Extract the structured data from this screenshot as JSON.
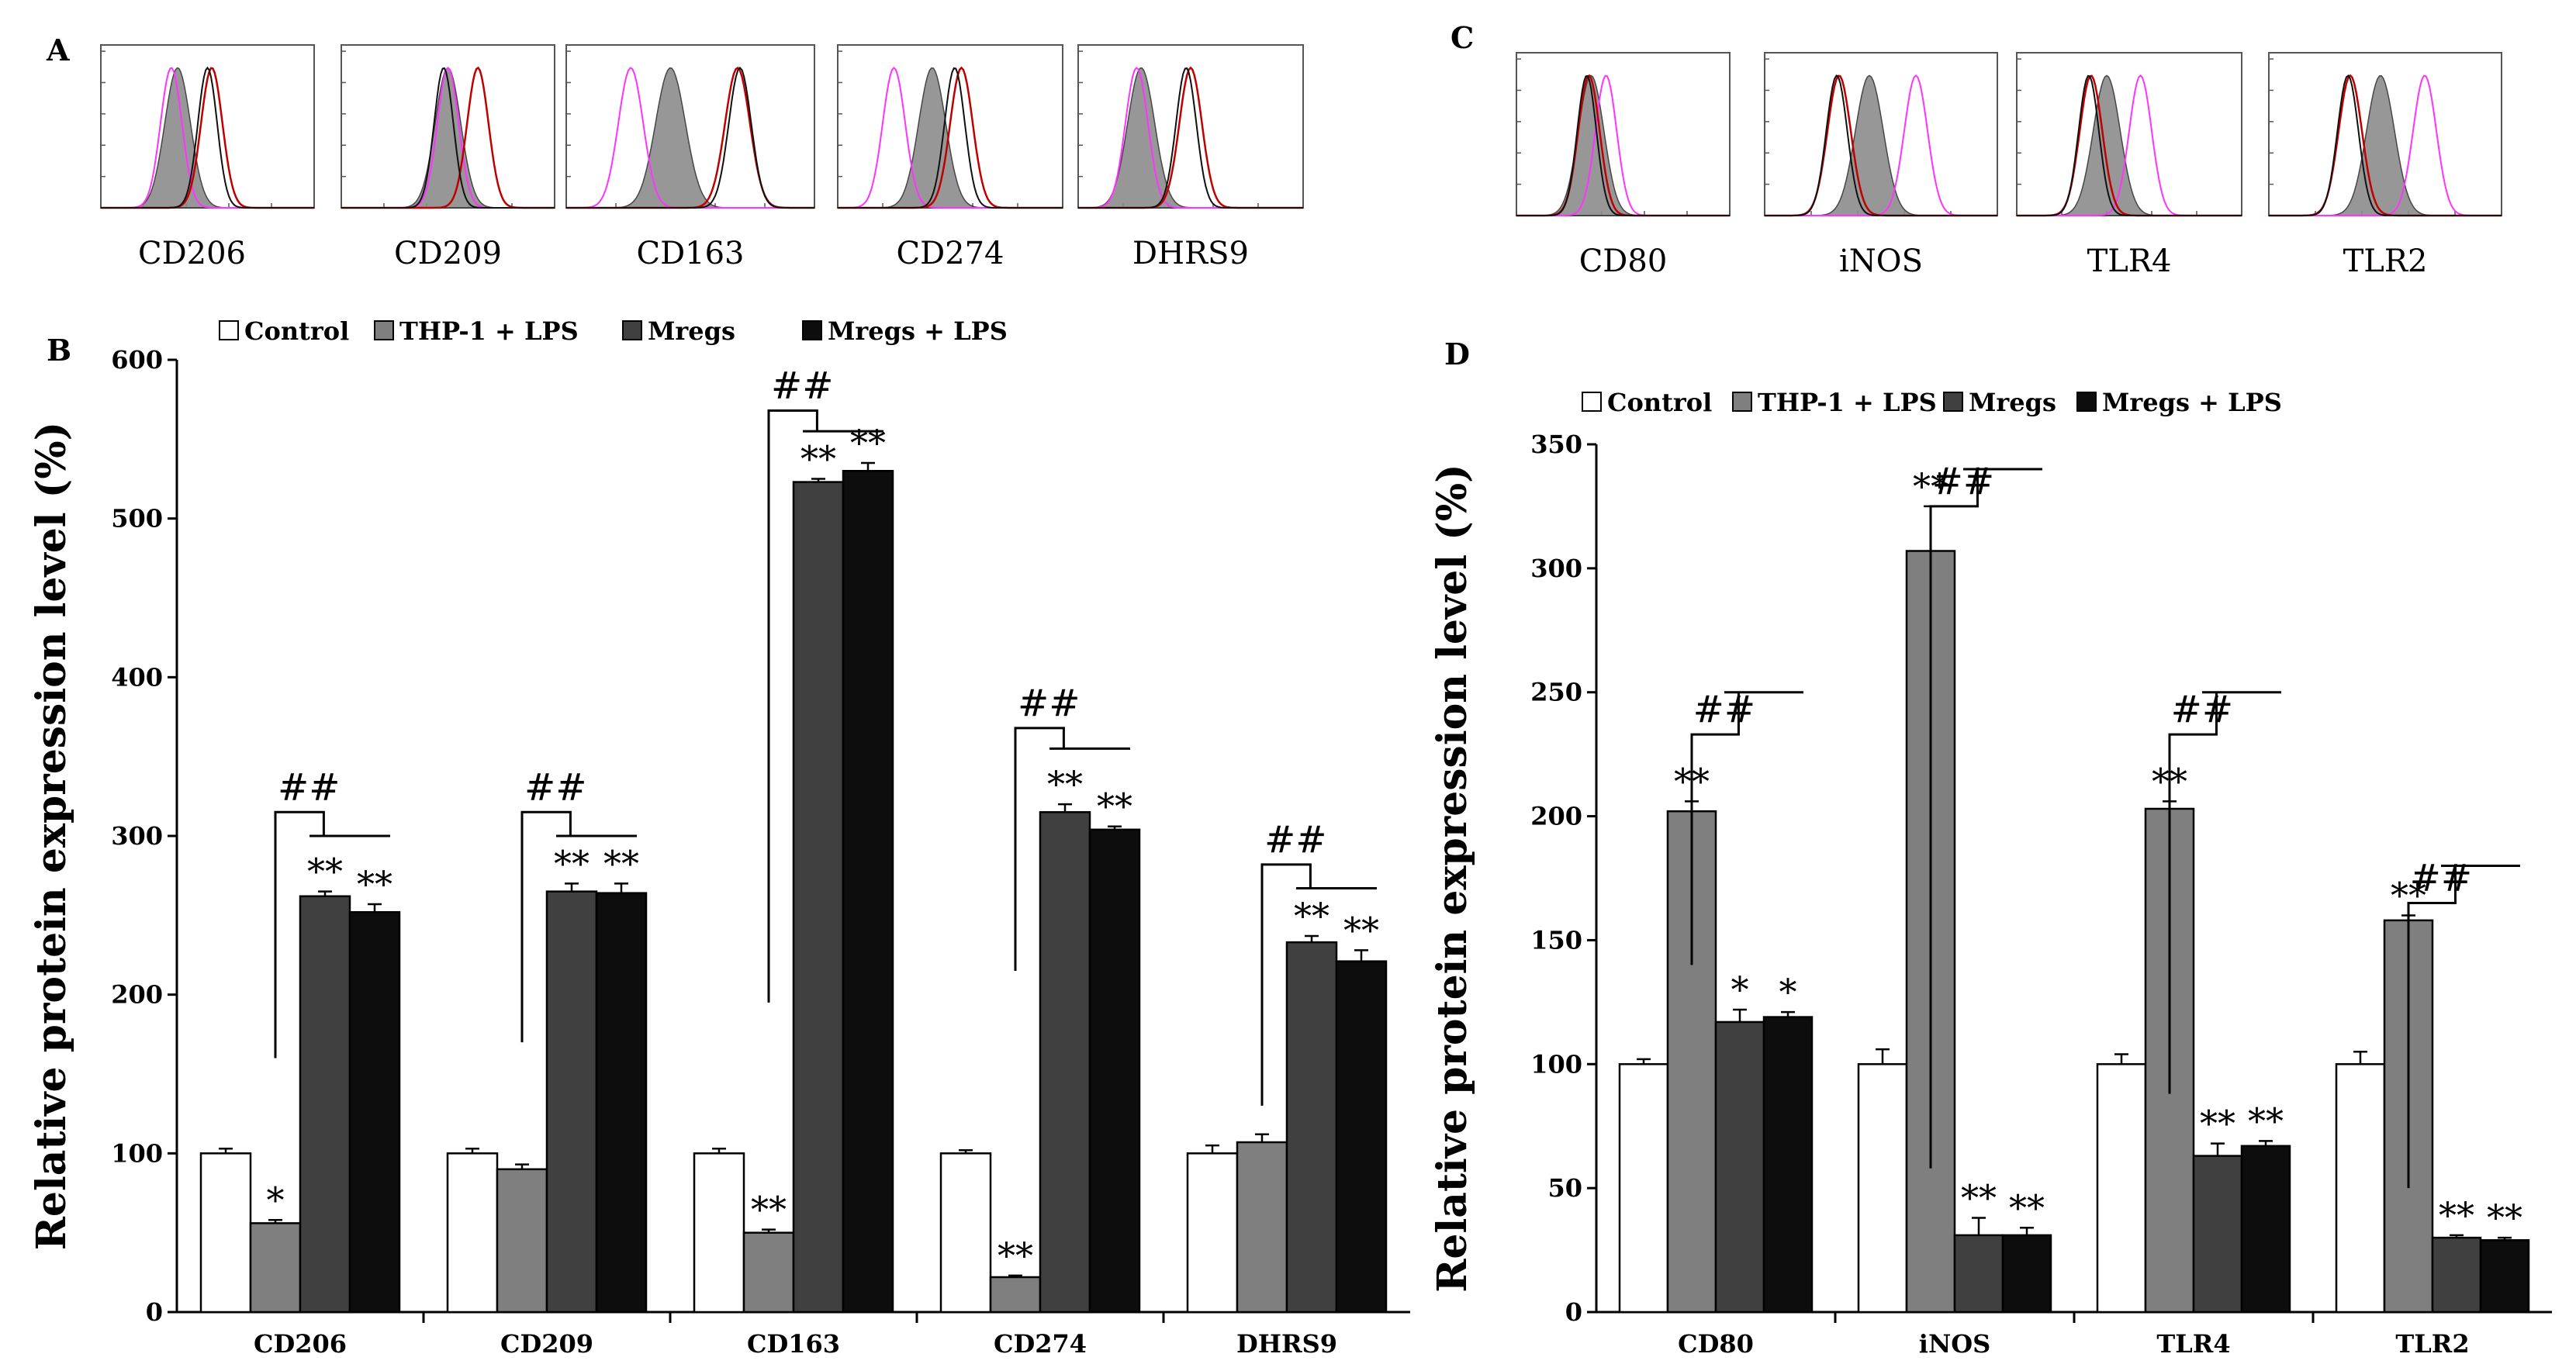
{
  "panels": {
    "A": "A",
    "B": "B",
    "C": "C",
    "D": "D"
  },
  "flow_panels": {
    "A": [
      "CD206",
      "CD209",
      "CD163",
      "CD274",
      "DHRS9"
    ],
    "C": [
      "CD80",
      "iNOS",
      "TLR4",
      "TLR2"
    ]
  },
  "legend": [
    "Control",
    "THP-1 + LPS",
    "Mregs",
    "Mregs + LPS"
  ],
  "colors": {
    "series": [
      "#ffffff",
      "#7f7f7f",
      "#404040",
      "#0d0d0d"
    ],
    "flow_pink": "#ff33ff",
    "flow_red": "#c00000",
    "flow_gray_fill": "#8c8c8c"
  },
  "chart_data": [
    {
      "type": "bar",
      "panel": "B",
      "ylabel": "Relative protein expression level (%)",
      "ylim": [
        0,
        600
      ],
      "yticks": [
        "0",
        "100",
        "200",
        "300",
        "400",
        "500",
        "600"
      ],
      "categories": [
        "CD206",
        "CD209",
        "CD163",
        "CD274",
        "DHRS9"
      ],
      "series": [
        {
          "name": "Control",
          "values": [
            100,
            100,
            100,
            100,
            100
          ],
          "errors": [
            3,
            3,
            3,
            2,
            5
          ]
        },
        {
          "name": "THP-1 + LPS",
          "values": [
            56,
            90,
            50,
            22,
            107
          ],
          "errors": [
            2,
            3,
            2,
            1,
            5
          ]
        },
        {
          "name": "Mregs",
          "values": [
            262,
            265,
            523,
            315,
            233
          ],
          "errors": [
            3,
            5,
            2,
            5,
            4
          ]
        },
        {
          "name": "Mregs + LPS",
          "values": [
            252,
            264,
            530,
            304,
            221
          ],
          "errors": [
            5,
            6,
            5,
            2,
            7
          ]
        }
      ],
      "significance": [
        [
          "",
          "*",
          "**",
          "**"
        ],
        [
          "",
          "",
          "**",
          "**"
        ],
        [
          "",
          "**",
          "**",
          "**"
        ],
        [
          "",
          "**",
          "**",
          "**"
        ],
        [
          "",
          "",
          "**",
          "**"
        ]
      ],
      "bracket_labels": [
        "##",
        "##",
        "##",
        "##",
        "##"
      ]
    },
    {
      "type": "bar",
      "panel": "D",
      "ylabel": "Relative protein expression level (%)",
      "ylim": [
        0,
        350
      ],
      "yticks": [
        "0",
        "50",
        "100",
        "150",
        "200",
        "250",
        "300",
        "350"
      ],
      "categories": [
        "CD80",
        "iNOS",
        "TLR4",
        "TLR2"
      ],
      "series": [
        {
          "name": "Control",
          "values": [
            100,
            100,
            100,
            100
          ],
          "errors": [
            2,
            6,
            4,
            5
          ]
        },
        {
          "name": "THP-1 + LPS",
          "values": [
            202,
            307,
            203,
            158
          ],
          "errors": [
            4,
            18,
            3,
            2
          ]
        },
        {
          "name": "Mregs",
          "values": [
            117,
            31,
            63,
            30
          ],
          "errors": [
            5,
            7,
            5,
            1
          ]
        },
        {
          "name": "Mregs + LPS",
          "values": [
            119,
            31,
            67,
            29
          ],
          "errors": [
            2,
            3,
            2,
            1
          ]
        }
      ],
      "significance": [
        [
          "",
          "**",
          "*",
          "*"
        ],
        [
          "",
          "**",
          "**",
          "**"
        ],
        [
          "",
          "**",
          "**",
          "**"
        ],
        [
          "",
          "**",
          "**",
          "**"
        ]
      ],
      "bracket_labels": [
        "##",
        "##",
        "##",
        "##"
      ]
    }
  ]
}
